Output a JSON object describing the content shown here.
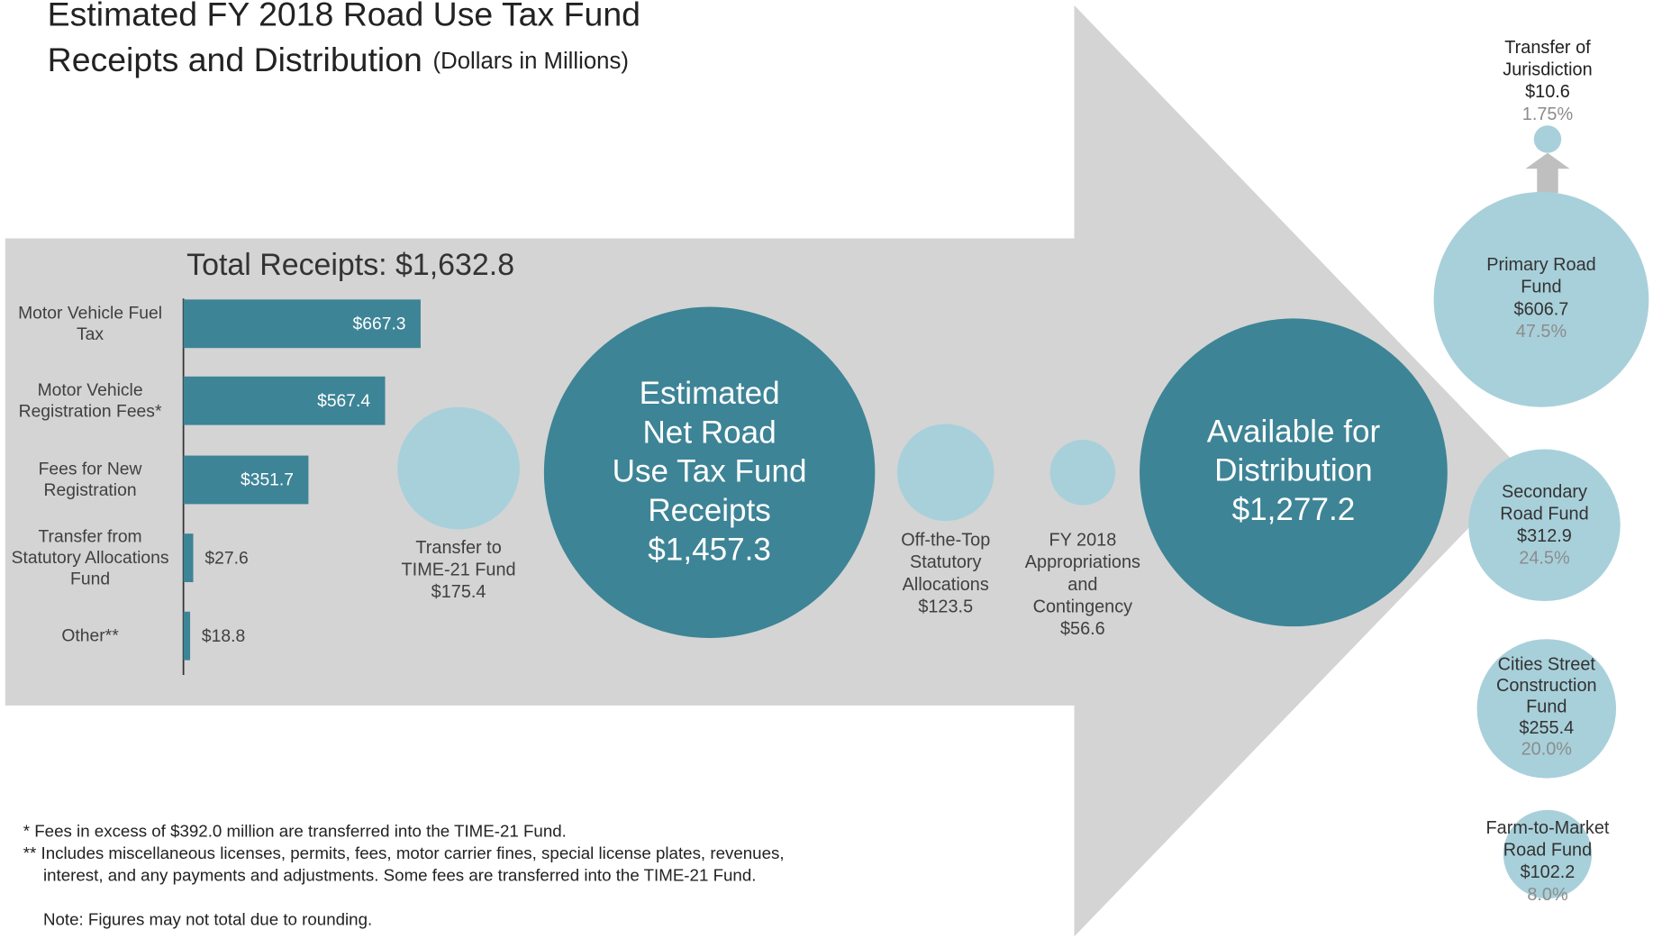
{
  "title_lines": [
    "Estimated FY 2018 Road Use Tax Fund",
    "Receipts and Distribution"
  ],
  "subtitle": "(Dollars in Millions)",
  "chart_data": {
    "type": "bar",
    "orientation": "horizontal",
    "title": "Total Receipts:  $1,632.8",
    "categories": [
      "Motor Vehicle Fuel Tax",
      "Motor Vehicle Registration Fees*",
      "Fees for New Registration",
      "Transfer from Statutory Allocations Fund",
      "Other**"
    ],
    "values": [
      667.3,
      567.4,
      351.7,
      27.6,
      18.8
    ],
    "value_labels": [
      "$667.3",
      "$567.4",
      "$351.7",
      "$27.6",
      "$18.8"
    ],
    "color": "#3d8496"
  },
  "nodes": [
    {
      "lines": [
        "Transfer to",
        "TIME-21 Fund"
      ],
      "amount": "$175.4"
    },
    {
      "lines": [
        "Estimated",
        "Net  Road",
        "Use Tax Fund",
        "Receipts"
      ],
      "amount": "$1,457.3"
    },
    {
      "lines": [
        "Off-the-Top",
        "Statutory",
        "Allocations"
      ],
      "amount": "$123.5"
    },
    {
      "lines": [
        "FY 2018",
        "Appropriations",
        "and",
        "Contingency"
      ],
      "amount": "$56.6"
    },
    {
      "lines": [
        "Available for",
        "Distribution"
      ],
      "amount": "$1,277.2"
    },
    {
      "lines": [
        "Transfer of",
        "Jurisdiction"
      ],
      "amount": "$10.6",
      "share": "1.75%"
    },
    {
      "lines": [
        "Primary Road",
        "Fund"
      ],
      "amount": "$606.7",
      "share": "47.5%"
    },
    {
      "lines": [
        "Secondary",
        "Road Fund"
      ],
      "amount": "$312.9",
      "share": "24.5%"
    },
    {
      "lines": [
        "Cities Street",
        "Construction",
        "Fund"
      ],
      "amount": "$255.4",
      "share": "20.0%"
    },
    {
      "lines": [
        "Farm-to-Market",
        "Road Fund"
      ],
      "amount": "$102.2",
      "share": "8.0%"
    }
  ],
  "footnotes": [
    "*  Fees in excess of $392.0 million are transferred into the TIME-21 Fund.",
    "** Includes miscellaneous  licenses,  permits,  fees,  motor carrier fines,  special license plates,  revenues,",
    "interest,  and any payments and adjustments.   Some fees are transferred into the TIME-21 Fund.",
    "Note:  Figures may not total due to rounding."
  ]
}
